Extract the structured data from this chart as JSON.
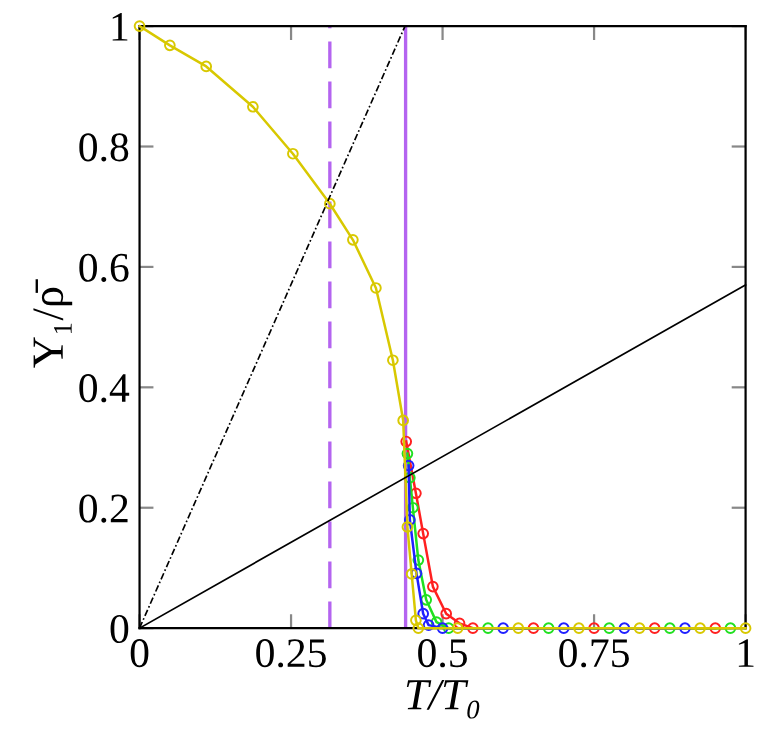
{
  "chart_data": {
    "type": "line",
    "xlabel": "T/T₀",
    "ylabel": "Υ₁/ρ̄",
    "marker": "circle",
    "grid": false,
    "xlim": [
      0,
      1
    ],
    "ylim": [
      0,
      1
    ],
    "xticks": [
      0,
      0.25,
      0.5,
      0.75,
      1
    ],
    "yticks": [
      0,
      0.2,
      0.4,
      0.6,
      0.8,
      1
    ],
    "series": [
      {
        "color": "#ff2020",
        "x": [
          0.44,
          0.456,
          0.468,
          0.484,
          0.506,
          0.528,
          0.55,
          0.65,
          0.75,
          0.85,
          0.95
        ],
        "values": [
          0.31,
          0.224,
          0.157,
          0.069,
          0.024,
          0.008,
          0,
          0,
          0,
          0,
          0
        ]
      },
      {
        "color": "#20e020",
        "x": [
          0.442,
          0.446,
          0.451,
          0.46,
          0.473,
          0.49,
          0.51,
          0.575,
          0.675,
          0.775,
          0.875,
          0.975
        ],
        "values": [
          0.29,
          0.25,
          0.2,
          0.113,
          0.047,
          0.01,
          0,
          0,
          0,
          0,
          0,
          0
        ]
      },
      {
        "color": "#2020ff",
        "x": [
          0.444,
          0.446,
          0.457,
          0.468,
          0.477,
          0.5,
          0.6,
          0.7,
          0.8,
          0.9
        ],
        "values": [
          0.27,
          0.18,
          0.091,
          0.024,
          0.005,
          0,
          0,
          0,
          0,
          0
        ]
      },
      {
        "color": "#d8c800",
        "x": [
          0,
          0.05,
          0.11,
          0.187,
          0.253,
          0.314,
          0.352,
          0.39,
          0.418,
          0.435,
          0.442,
          0.449,
          0.456,
          0.46,
          0.525,
          0.625,
          0.725,
          0.825,
          0.925,
          1
        ],
        "values": [
          1,
          0.968,
          0.933,
          0.866,
          0.788,
          0.705,
          0.645,
          0.565,
          0.445,
          0.345,
          0.168,
          0.09,
          0.013,
          0,
          0,
          0,
          0,
          0,
          0,
          0
        ]
      },
      {
        "color": "#000000",
        "marker": "none",
        "line_style": "dashdot",
        "x": [
          0,
          0.438
        ],
        "values": [
          0,
          1
        ]
      },
      {
        "color": "#000000",
        "marker": "none",
        "line_style": "solid",
        "x": [
          0,
          1
        ],
        "values": [
          0,
          0.57
        ]
      }
    ],
    "ref_lines": [
      {
        "axis": "x",
        "value": 0.314,
        "color": "#b464f0",
        "line_style": "dashed"
      },
      {
        "axis": "x",
        "value": 0.439,
        "color": "#b464f0",
        "line_style": "solid"
      }
    ]
  }
}
